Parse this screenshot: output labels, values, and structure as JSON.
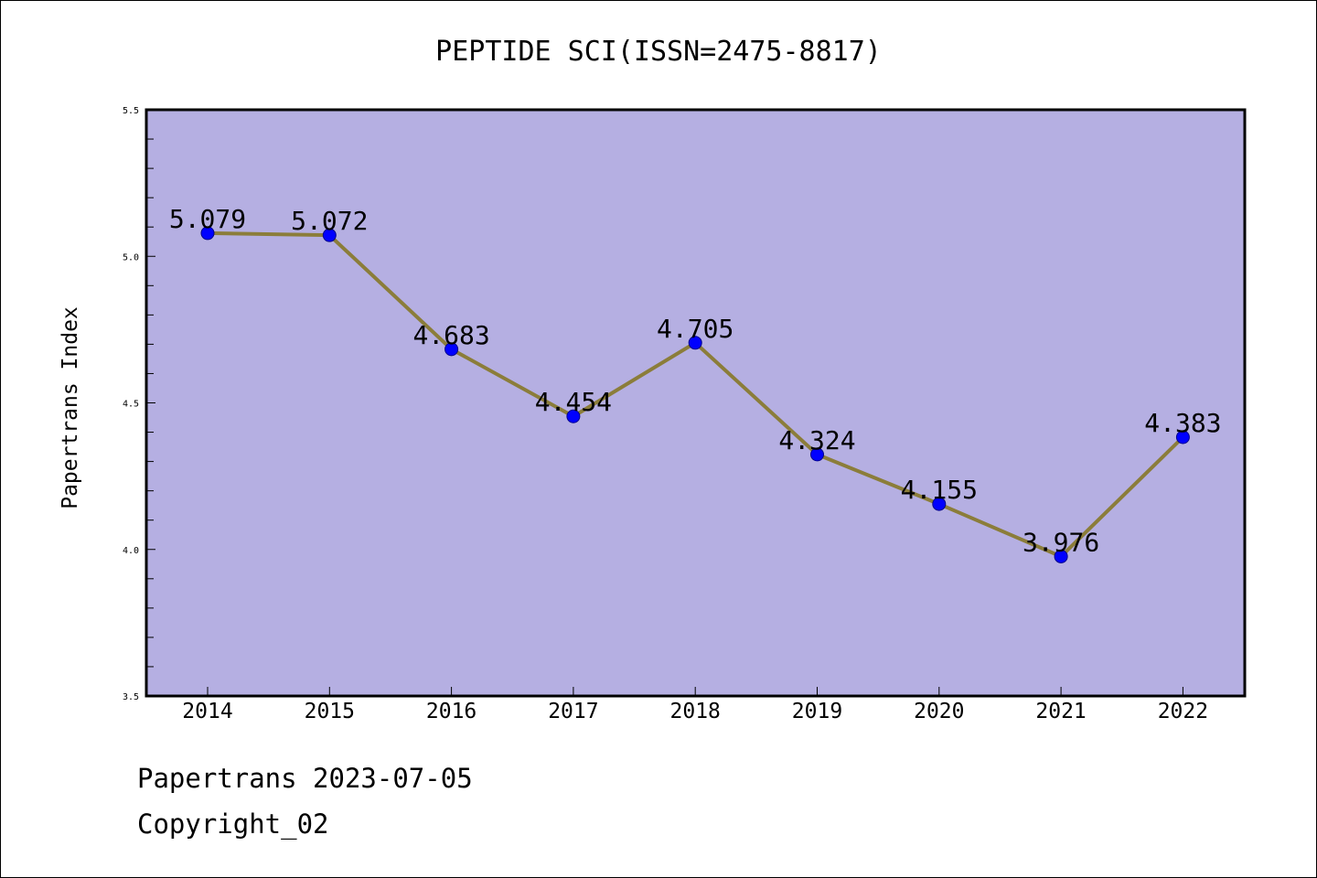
{
  "chart_data": {
    "type": "line",
    "title": "PEPTIDE SCI(ISSN=2475-8817)",
    "xlabel": "",
    "ylabel": "Papertrans Index",
    "categories": [
      "2014",
      "2015",
      "2016",
      "2017",
      "2018",
      "2019",
      "2020",
      "2021",
      "2022"
    ],
    "values": [
      5.079,
      5.072,
      4.683,
      4.454,
      4.705,
      4.324,
      4.155,
      3.976,
      4.383
    ],
    "data_labels": [
      "5.079",
      "5.072",
      "4.683",
      "4.454",
      "4.705",
      "4.324",
      "4.155",
      "3.976",
      "4.383"
    ],
    "ylim": [
      3.5,
      5.5
    ],
    "yticks": [
      3.5,
      4.0,
      4.5,
      5.0,
      5.5
    ],
    "ytick_labels": [
      "3.5",
      "4.0",
      "4.5",
      "5.0",
      "5.5"
    ],
    "grid": false,
    "legend": "none",
    "colors": {
      "plot_background": "#b5afe2",
      "line": "#8b7d3a",
      "marker": "#0000ff",
      "axis": "#000000"
    }
  },
  "footer": {
    "source": "Papertrans 2023-07-05",
    "copyright": "Copyright_02"
  }
}
